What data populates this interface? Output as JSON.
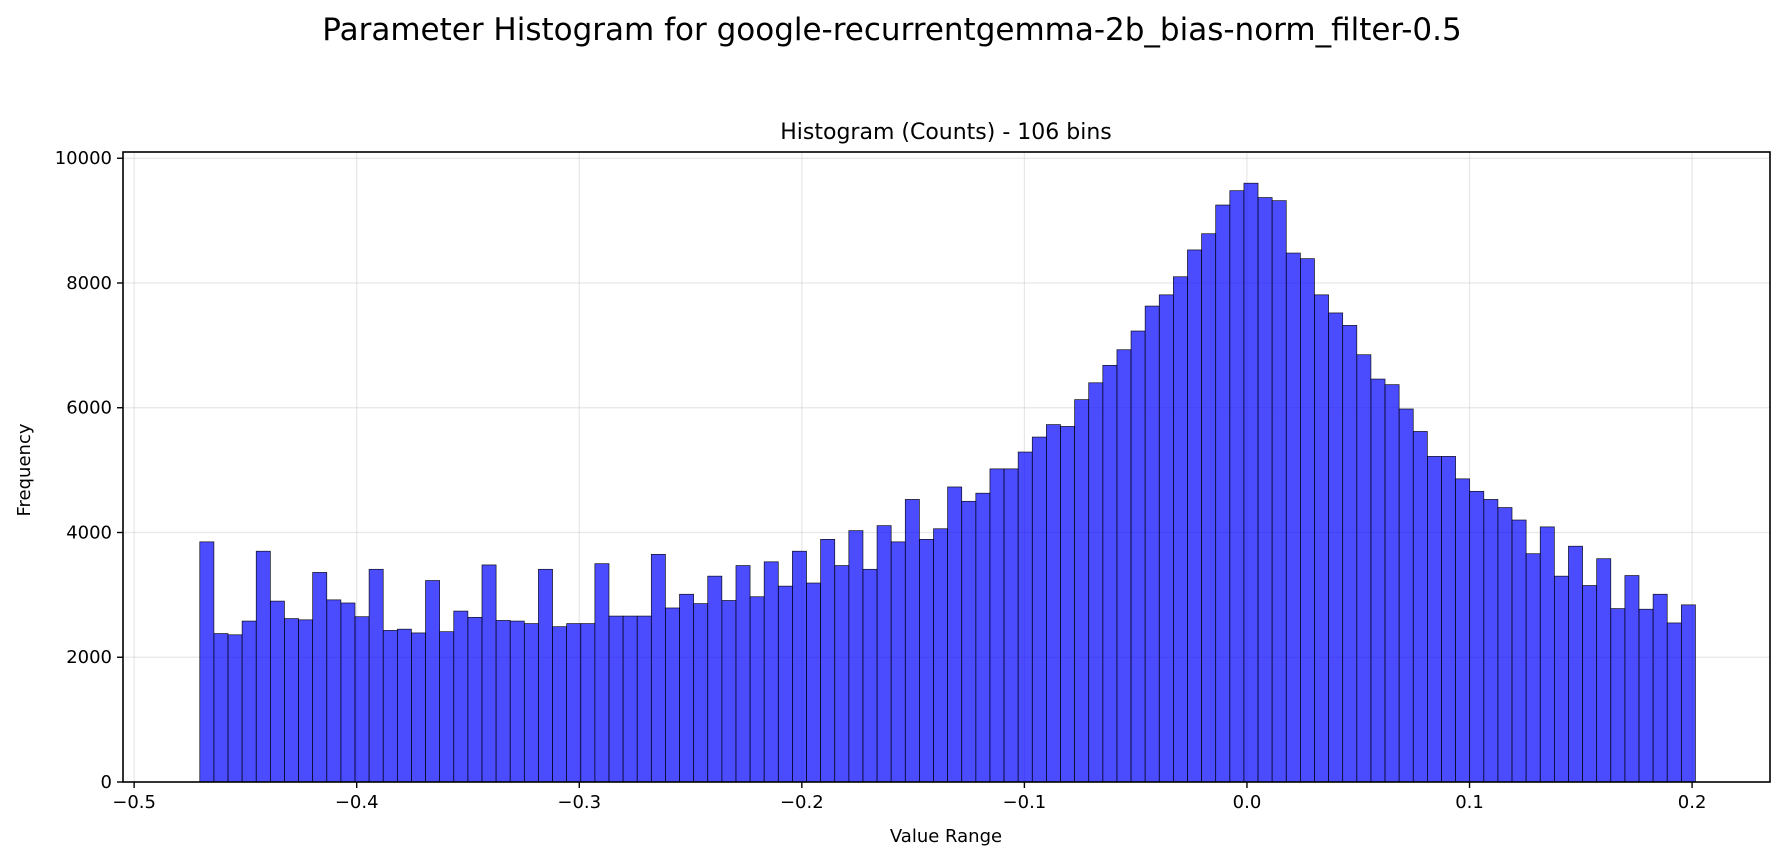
{
  "figure": {
    "title": "Parameter Histogram for google-recurrentgemma-2b_bias-norm_filter-0.5"
  },
  "chart_data": {
    "type": "bar",
    "title": "Histogram (Counts) - 106 bins",
    "xlabel": "Value Range",
    "ylabel": "Frequency",
    "xlim": [
      -0.505,
      0.235
    ],
    "ylim": [
      0,
      10100
    ],
    "xticks": [
      -0.5,
      -0.4,
      -0.3,
      -0.2,
      -0.1,
      0.0,
      0.1,
      0.2
    ],
    "xtick_labels": [
      "−0.5",
      "−0.4",
      "−0.3",
      "−0.2",
      "−0.1",
      "0.0",
      "0.1",
      "0.2"
    ],
    "yticks": [
      0,
      2000,
      4000,
      6000,
      8000,
      10000
    ],
    "ytick_labels": [
      "0",
      "2000",
      "4000",
      "6000",
      "8000",
      "10000"
    ],
    "grid": true,
    "bar_color": "#0000ff",
    "bar_alpha": 0.7,
    "edge_color": "#000000",
    "bin_start": -0.4705,
    "bin_end": 0.2015,
    "values": [
      3850,
      2380,
      2360,
      2580,
      3700,
      2900,
      2620,
      2600,
      3360,
      2920,
      2870,
      2650,
      3410,
      2430,
      2450,
      2390,
      3230,
      2410,
      2740,
      2640,
      3480,
      2590,
      2580,
      2540,
      3410,
      2490,
      2540,
      2540,
      3500,
      2660,
      2660,
      2660,
      3650,
      2790,
      3010,
      2860,
      3300,
      2910,
      3470,
      2970,
      3530,
      3140,
      3700,
      3190,
      3890,
      3470,
      4030,
      3410,
      4110,
      3850,
      4530,
      3890,
      4060,
      4730,
      4500,
      4630,
      5020,
      5020,
      5290,
      5530,
      5730,
      5700,
      6130,
      6400,
      6680,
      6930,
      7230,
      7630,
      7810,
      8100,
      8530,
      8790,
      9250,
      9480,
      9600,
      9370,
      9320,
      8480,
      8390,
      7810,
      7520,
      7320,
      6850,
      6460,
      6370,
      5980,
      5620,
      5220,
      5220,
      4860,
      4660,
      4530,
      4400,
      4200,
      3660,
      4090,
      3300,
      3780,
      3150,
      3580,
      2780,
      3310,
      2770,
      3010,
      2550,
      2840
    ]
  }
}
